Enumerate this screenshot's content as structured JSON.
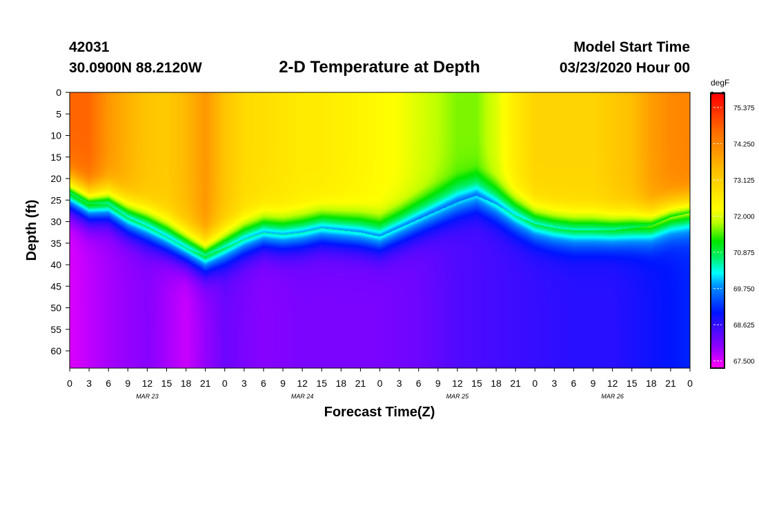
{
  "header": {
    "station_id": "42031",
    "coordinates": "30.0900N 88.2120W",
    "title": "2-D Temperature at Depth",
    "model_start_label": "Model Start Time",
    "model_start_value": "03/23/2020 Hour 00"
  },
  "chart_data": {
    "type": "heatmap",
    "title": "2-D Temperature at Depth",
    "xlabel": "Forecast Time(Z)",
    "ylabel": "Depth (ft)",
    "x_range_hours": [
      0,
      96
    ],
    "y_range_ft": [
      0,
      64
    ],
    "y_inverted": true,
    "x_tick_labels": [
      "0",
      "3",
      "6",
      "9",
      "12",
      "15",
      "18",
      "21",
      "0",
      "3",
      "6",
      "9",
      "12",
      "15",
      "18",
      "21",
      "0",
      "3",
      "6",
      "9",
      "12",
      "15",
      "18",
      "21",
      "0",
      "3",
      "6",
      "9",
      "12",
      "15",
      "18",
      "21",
      "0"
    ],
    "date_labels": [
      {
        "label": "MAR 23",
        "hour": 12
      },
      {
        "label": "MAR 24",
        "hour": 36
      },
      {
        "label": "MAR 25",
        "hour": 60
      },
      {
        "label": "MAR 26",
        "hour": 84
      }
    ],
    "y_ticks": [
      0,
      5,
      10,
      15,
      20,
      25,
      30,
      35,
      40,
      45,
      50,
      55,
      60
    ],
    "colorbar": {
      "unit": "degF",
      "min": 67.3,
      "max": 75.8,
      "tick_labels": [
        "75.375",
        "74.250",
        "73.125",
        "72.000",
        "70.875",
        "69.750",
        "68.625",
        "67.500"
      ],
      "tick_values": [
        75.375,
        74.25,
        73.125,
        72.0,
        70.875,
        69.75,
        68.625,
        67.5
      ]
    },
    "thermocline_center_depth_ft": [
      [
        0,
        23.5
      ],
      [
        3,
        26
      ],
      [
        6,
        26
      ],
      [
        9,
        29
      ],
      [
        12,
        31
      ],
      [
        15,
        33.5
      ],
      [
        18,
        36
      ],
      [
        21,
        38
      ],
      [
        24,
        36
      ],
      [
        27,
        34
      ],
      [
        30,
        32.5
      ],
      [
        33,
        33
      ],
      [
        36,
        32.5
      ],
      [
        39,
        31.5
      ],
      [
        42,
        32
      ],
      [
        45,
        32.5
      ],
      [
        48,
        33.5
      ],
      [
        51,
        31.5
      ],
      [
        54,
        29.5
      ],
      [
        57,
        27.5
      ],
      [
        60,
        25.5
      ],
      [
        63,
        24
      ],
      [
        66,
        26
      ],
      [
        69,
        28.5
      ],
      [
        72,
        30.5
      ],
      [
        75,
        31.5
      ],
      [
        78,
        32
      ],
      [
        81,
        32
      ],
      [
        84,
        32
      ],
      [
        87,
        31.5
      ],
      [
        90,
        31
      ],
      [
        93,
        29
      ],
      [
        96,
        28
      ]
    ],
    "surface_temperature_degF": [
      [
        0,
        74.7
      ],
      [
        3,
        74.7
      ],
      [
        6,
        74.0
      ],
      [
        9,
        73.6
      ],
      [
        12,
        73.3
      ],
      [
        15,
        73.2
      ],
      [
        18,
        73.5
      ],
      [
        21,
        74.0
      ],
      [
        24,
        73.3
      ],
      [
        27,
        72.9
      ],
      [
        30,
        72.8
      ],
      [
        33,
        72.7
      ],
      [
        36,
        72.6
      ],
      [
        39,
        72.6
      ],
      [
        42,
        72.5
      ],
      [
        45,
        72.4
      ],
      [
        48,
        72.3
      ],
      [
        51,
        72.2
      ],
      [
        54,
        72.0
      ],
      [
        57,
        71.8
      ],
      [
        60,
        71.6
      ],
      [
        63,
        71.6
      ],
      [
        66,
        72.0
      ],
      [
        69,
        72.6
      ],
      [
        72,
        73.0
      ],
      [
        75,
        73.0
      ],
      [
        78,
        73.0
      ],
      [
        81,
        73.0
      ],
      [
        84,
        73.2
      ],
      [
        87,
        73.4
      ],
      [
        90,
        73.9
      ],
      [
        93,
        74.2
      ],
      [
        96,
        74.3
      ]
    ],
    "deep_temperature_degF": [
      [
        0,
        67.5
      ],
      [
        6,
        67.8
      ],
      [
        12,
        68.0
      ],
      [
        18,
        67.6
      ],
      [
        24,
        68.2
      ],
      [
        30,
        68.0
      ],
      [
        36,
        68.1
      ],
      [
        42,
        68.1
      ],
      [
        48,
        68.1
      ],
      [
        54,
        68.2
      ],
      [
        60,
        68.4
      ],
      [
        66,
        68.5
      ],
      [
        72,
        68.6
      ],
      [
        78,
        68.7
      ],
      [
        84,
        68.7
      ],
      [
        90,
        68.9
      ],
      [
        96,
        69.1
      ]
    ]
  }
}
